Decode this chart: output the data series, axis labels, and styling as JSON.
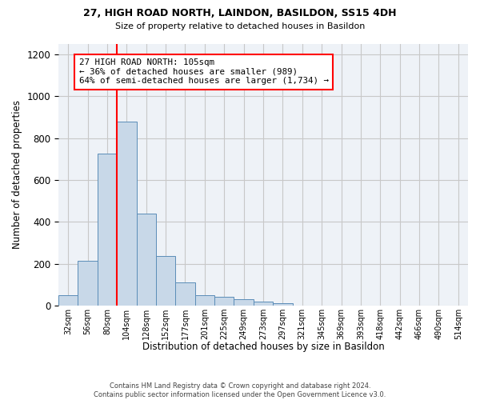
{
  "title1": "27, HIGH ROAD NORTH, LAINDON, BASILDON, SS15 4DH",
  "title2": "Size of property relative to detached houses in Basildon",
  "xlabel": "Distribution of detached houses by size in Basildon",
  "ylabel": "Number of detached properties",
  "footer": "Contains HM Land Registry data © Crown copyright and database right 2024.\nContains public sector information licensed under the Open Government Licence v3.0.",
  "annotation_line1": "27 HIGH ROAD NORTH: 105sqm",
  "annotation_line2": "← 36% of detached houses are smaller (989)",
  "annotation_line3": "64% of semi-detached houses are larger (1,734) →",
  "bar_values": [
    50,
    215,
    725,
    880,
    440,
    235,
    110,
    48,
    42,
    30,
    20,
    10,
    0,
    0,
    0,
    0,
    0,
    0,
    0,
    0,
    0
  ],
  "bar_color": "#c8d8e8",
  "bar_edge_color": "#5b8db8",
  "x_labels": [
    "32sqm",
    "56sqm",
    "80sqm",
    "104sqm",
    "128sqm",
    "152sqm",
    "177sqm",
    "201sqm",
    "225sqm",
    "249sqm",
    "273sqm",
    "297sqm",
    "321sqm",
    "345sqm",
    "369sqm",
    "393sqm",
    "418sqm",
    "442sqm",
    "466sqm",
    "490sqm",
    "514sqm"
  ],
  "ylim": [
    0,
    1250
  ],
  "yticks": [
    0,
    200,
    400,
    600,
    800,
    1000,
    1200
  ],
  "red_line_x": 3,
  "background_color": "#ffffff",
  "grid_color": "#c8c8c8",
  "ax_bg_color": "#eef2f7"
}
